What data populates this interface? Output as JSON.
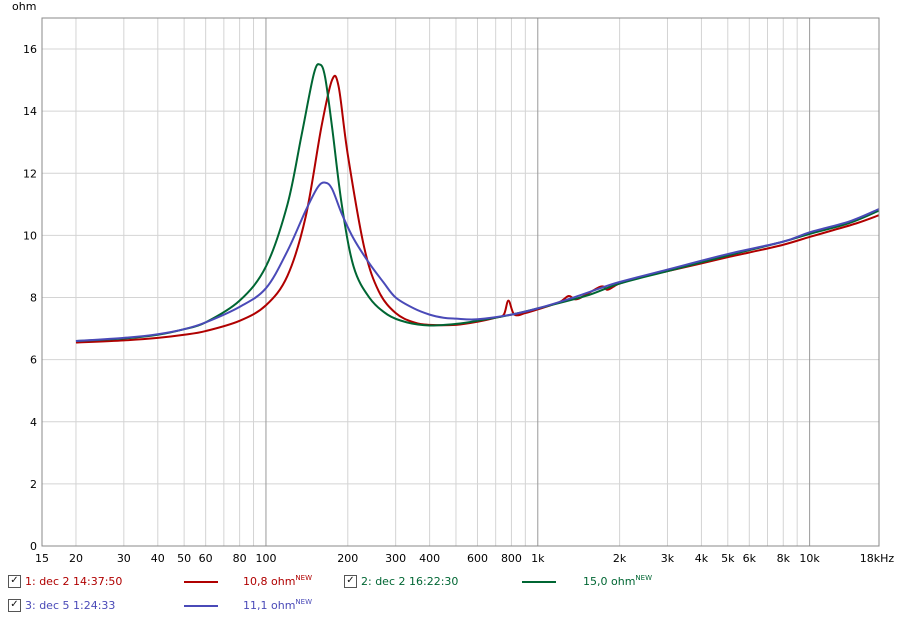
{
  "chart_data": {
    "type": "line",
    "ylabel": "ohm",
    "xscale": "log",
    "xlim": [
      15,
      18000
    ],
    "ylim": [
      0,
      17
    ],
    "yticks": [
      0,
      2,
      4,
      6,
      8,
      10,
      12,
      14,
      16
    ],
    "xtick_labels": [
      {
        "v": 15,
        "t": "15"
      },
      {
        "v": 20,
        "t": "20"
      },
      {
        "v": 30,
        "t": "30"
      },
      {
        "v": 40,
        "t": "40"
      },
      {
        "v": 50,
        "t": "50"
      },
      {
        "v": 60,
        "t": "60"
      },
      {
        "v": 80,
        "t": "80"
      },
      {
        "v": 100,
        "t": "100"
      },
      {
        "v": 200,
        "t": "200"
      },
      {
        "v": 300,
        "t": "300"
      },
      {
        "v": 400,
        "t": "400"
      },
      {
        "v": 600,
        "t": "600"
      },
      {
        "v": 800,
        "t": "800"
      },
      {
        "v": 1000,
        "t": "1k"
      },
      {
        "v": 2000,
        "t": "2k"
      },
      {
        "v": 3000,
        "t": "3k"
      },
      {
        "v": 4000,
        "t": "4k"
      },
      {
        "v": 5000,
        "t": "5k"
      },
      {
        "v": 6000,
        "t": "6k"
      },
      {
        "v": 8000,
        "t": "8k"
      },
      {
        "v": 10000,
        "t": "10k"
      },
      {
        "v": 18000,
        "t": "18kHz"
      }
    ],
    "grid": true,
    "series": [
      {
        "name": "1: dec 2 14:37:50",
        "value_label": "10,8 ohm",
        "color": "#b00000",
        "x": [
          20,
          30,
          40,
          50,
          60,
          80,
          100,
          120,
          140,
          160,
          175,
          185,
          200,
          230,
          260,
          300,
          350,
          400,
          500,
          600,
          700,
          750,
          780,
          820,
          900,
          1000,
          1200,
          1300,
          1400,
          1700,
          1800,
          1900,
          2000,
          2500,
          3000,
          4000,
          5000,
          6000,
          8000,
          10000,
          12000,
          15000,
          18000
        ],
        "y": [
          6.55,
          6.62,
          6.7,
          6.8,
          6.92,
          7.25,
          7.75,
          8.7,
          10.6,
          13.5,
          15.0,
          14.8,
          12.6,
          9.6,
          8.2,
          7.5,
          7.2,
          7.12,
          7.12,
          7.22,
          7.35,
          7.45,
          7.9,
          7.45,
          7.5,
          7.62,
          7.85,
          8.05,
          7.95,
          8.35,
          8.25,
          8.35,
          8.45,
          8.7,
          8.85,
          9.1,
          9.3,
          9.45,
          9.7,
          9.95,
          10.15,
          10.4,
          10.65
        ]
      },
      {
        "name": "2: dec 2 16:22:30",
        "value_label": "15,0 ohm",
        "color": "#006633",
        "x": [
          20,
          30,
          40,
          50,
          60,
          80,
          100,
          120,
          135,
          150,
          158,
          165,
          175,
          190,
          210,
          240,
          280,
          330,
          400,
          500,
          600,
          800,
          1000,
          1500,
          2000,
          3000,
          5000,
          8000,
          10000,
          14000,
          18000
        ],
        "y": [
          6.6,
          6.68,
          6.8,
          6.98,
          7.2,
          7.9,
          9.0,
          11.0,
          13.2,
          15.2,
          15.5,
          15.1,
          13.5,
          11.0,
          9.0,
          8.0,
          7.45,
          7.2,
          7.1,
          7.15,
          7.25,
          7.45,
          7.65,
          8.05,
          8.45,
          8.85,
          9.35,
          9.8,
          10.05,
          10.4,
          10.8
        ]
      },
      {
        "name": "3: dec 5 1:24:33",
        "value_label": "11,1 ohm",
        "color": "#4a4ab8",
        "x": [
          20,
          30,
          40,
          50,
          60,
          80,
          100,
          120,
          140,
          155,
          165,
          175,
          190,
          210,
          240,
          270,
          300,
          350,
          400,
          450,
          500,
          600,
          800,
          1000,
          1300,
          1700,
          2000,
          3000,
          5000,
          8000,
          10000,
          14000,
          18000
        ],
        "y": [
          6.6,
          6.7,
          6.82,
          6.98,
          7.2,
          7.7,
          8.3,
          9.5,
          10.8,
          11.55,
          11.7,
          11.5,
          10.7,
          9.9,
          9.1,
          8.5,
          8.0,
          7.65,
          7.45,
          7.35,
          7.32,
          7.3,
          7.45,
          7.65,
          7.95,
          8.3,
          8.5,
          8.9,
          9.4,
          9.8,
          10.1,
          10.45,
          10.85
        ]
      }
    ]
  }
}
